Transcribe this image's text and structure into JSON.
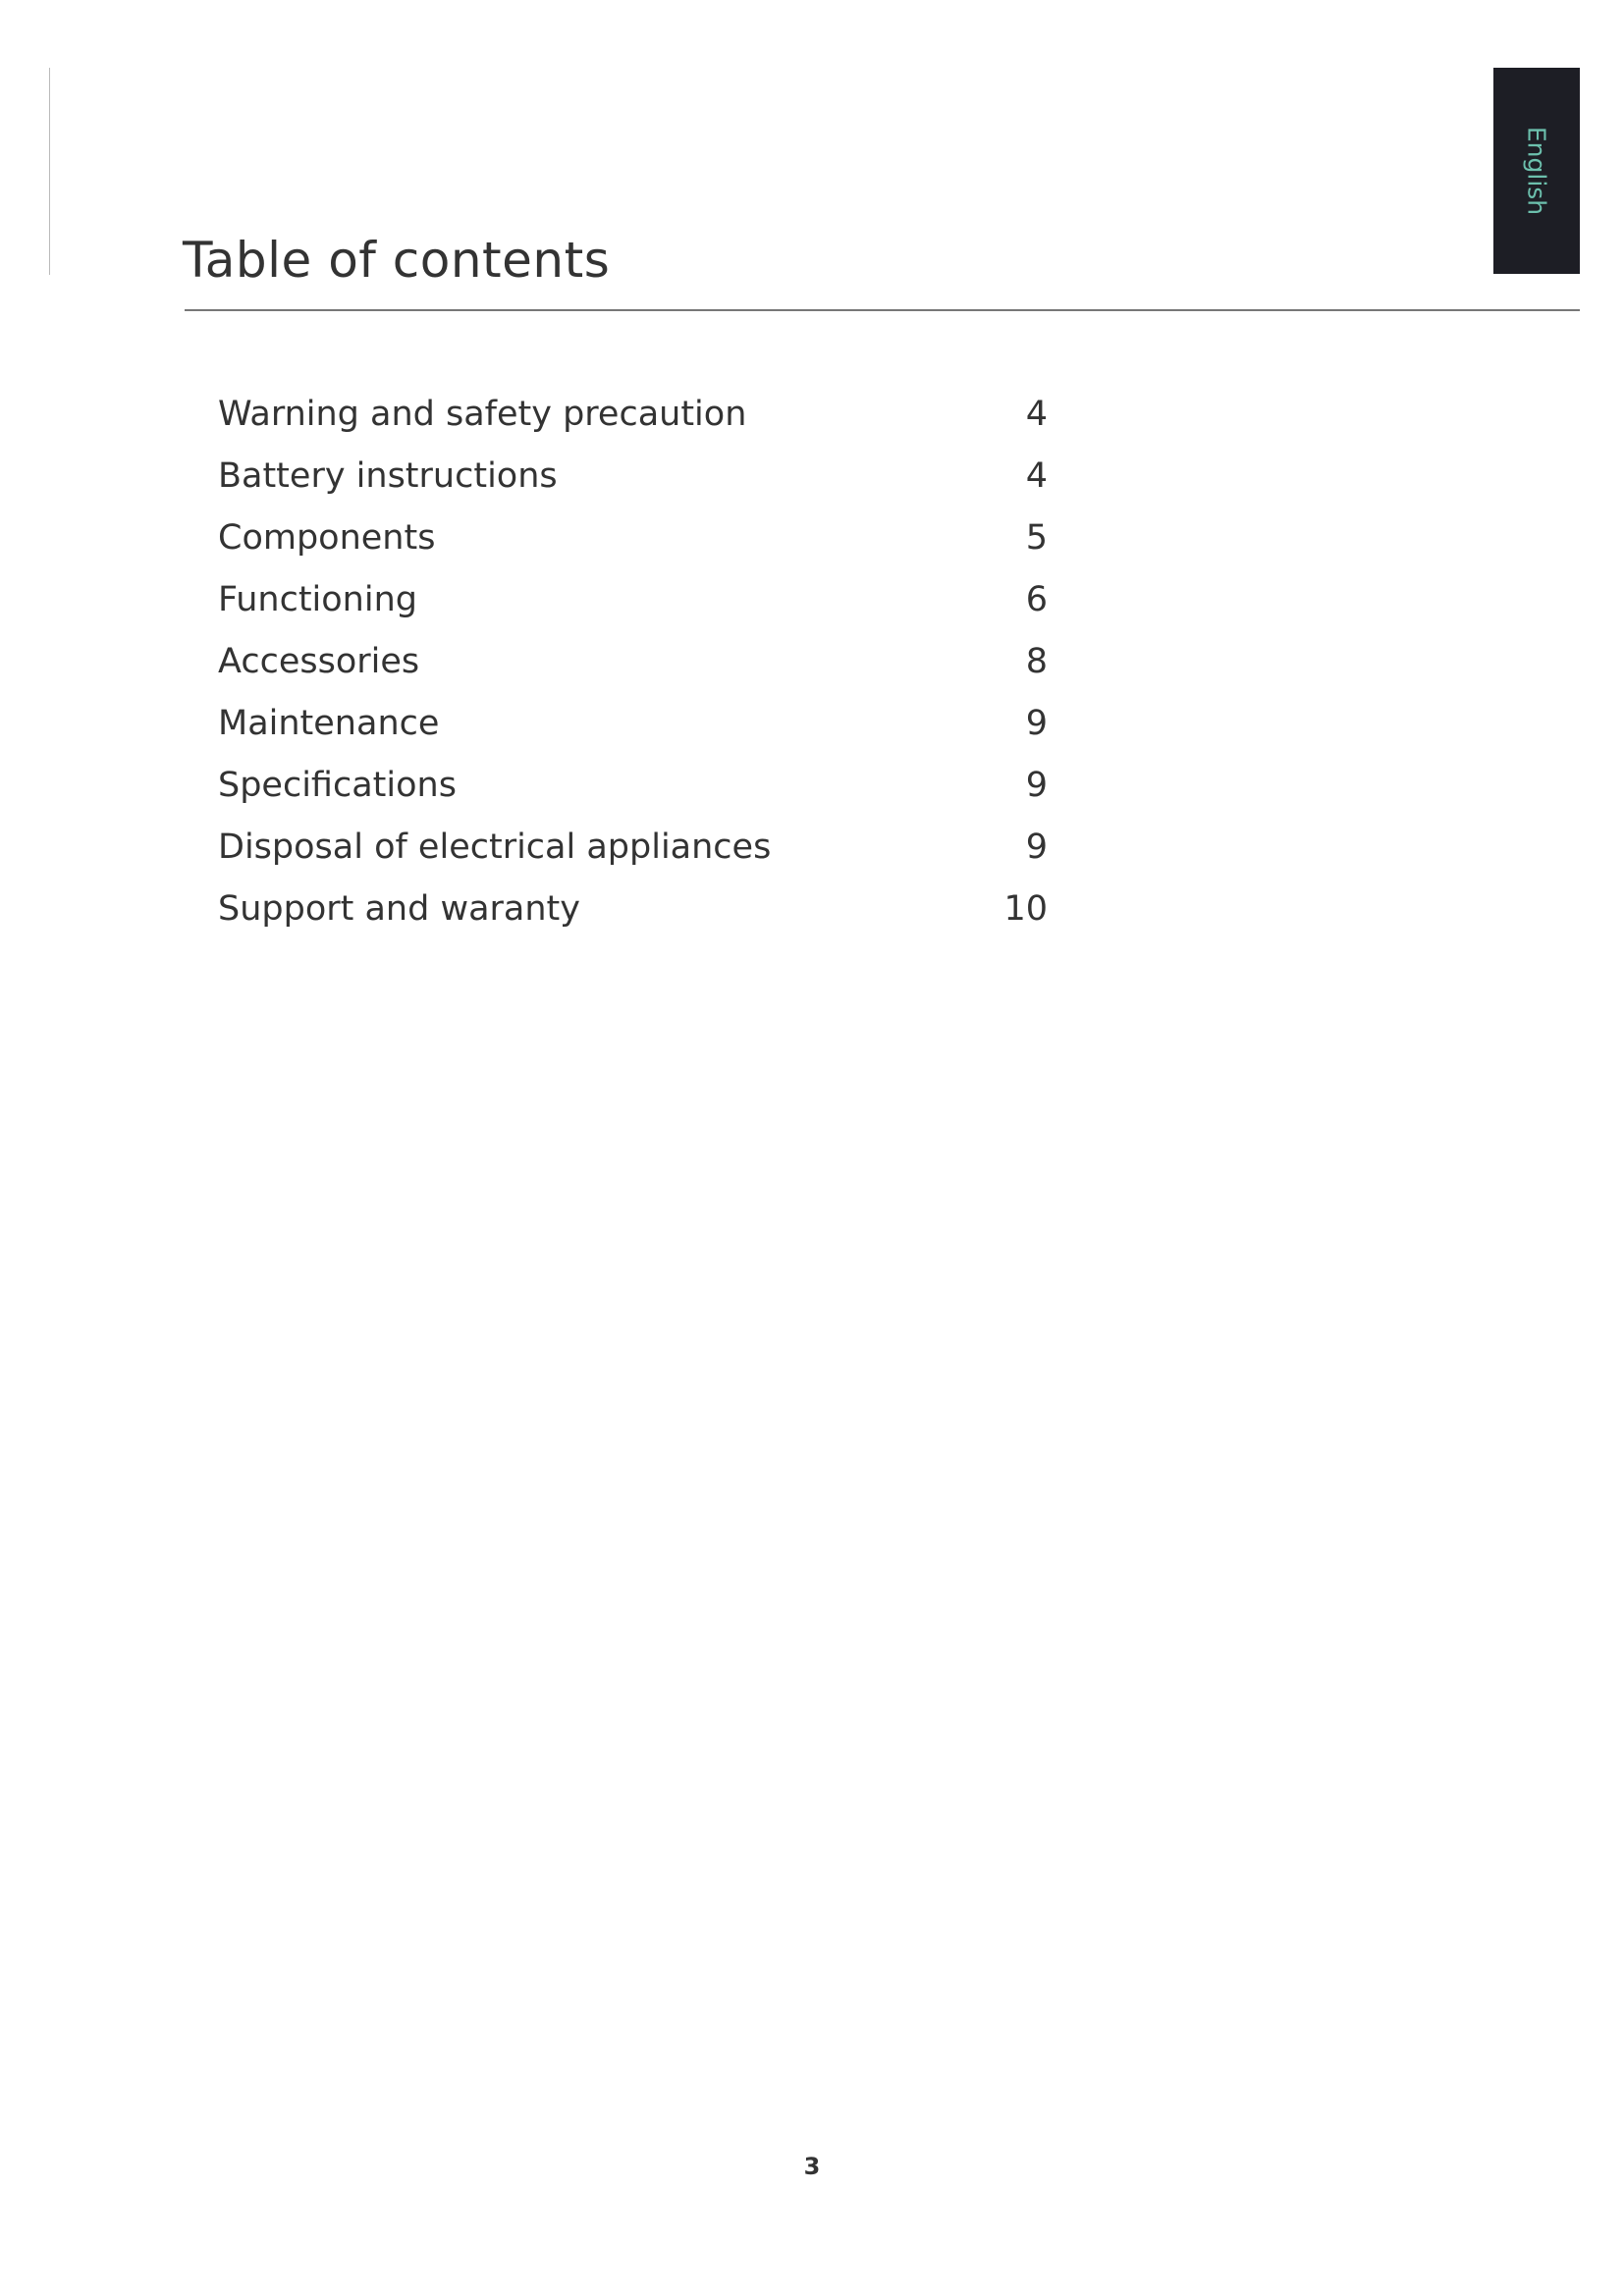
{
  "language_tab": {
    "label": "English",
    "bg_color": "#1d1e25",
    "text_color": "#6cc0ad"
  },
  "title": "Table of contents",
  "toc": [
    {
      "label": "Warning and safety precaution",
      "page": "4"
    },
    {
      "label": "Battery instructions",
      "page": "4"
    },
    {
      "label": "Components",
      "page": "5"
    },
    {
      "label": "Functioning",
      "page": "6"
    },
    {
      "label": "Accessories",
      "page": "8"
    },
    {
      "label": "Maintenance",
      "page": "9"
    },
    {
      "label": "Specifications",
      "page": "9"
    },
    {
      "label": "Disposal of electrical appliances",
      "page": "9"
    },
    {
      "label": "Support and waranty",
      "page": "10"
    }
  ],
  "page_number": "3"
}
